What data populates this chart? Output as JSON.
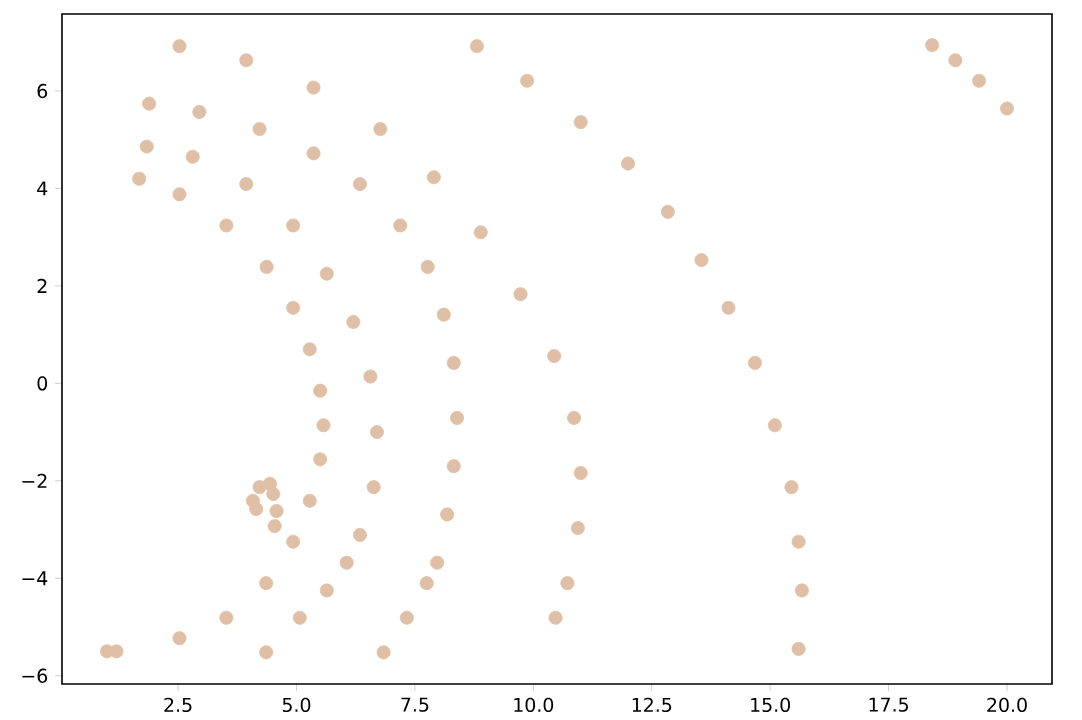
{
  "chart_data": {
    "type": "scatter",
    "color": "#dfc0a7",
    "x": [
      1.0,
      1.2,
      1.68,
      2.53,
      3.52,
      4.37,
      4.93,
      5.28,
      5.5,
      5.57,
      5.5,
      5.28,
      4.93,
      4.36,
      3.52,
      2.53,
      1.84,
      2.81,
      3.94,
      4.93,
      5.64,
      6.2,
      6.56,
      6.7,
      6.63,
      6.34,
      6.06,
      5.64,
      5.07,
      4.36,
      1.89,
      2.95,
      4.22,
      5.36,
      6.34,
      7.19,
      7.77,
      8.11,
      8.32,
      8.39,
      8.32,
      8.18,
      7.97,
      7.75,
      7.33,
      6.84,
      2.53,
      3.94,
      5.36,
      6.77,
      7.9,
      8.89,
      9.73,
      10.44,
      10.86,
      11.0,
      10.94,
      10.72,
      10.47,
      8.81,
      9.87,
      11.0,
      12.0,
      12.84,
      13.55,
      14.12,
      14.68,
      15.1,
      15.45,
      15.6,
      15.67,
      15.6,
      18.42,
      18.91,
      19.41,
      20.0,
      4.22,
      4.44,
      4.08,
      4.15,
      4.51,
      4.58,
      4.54
    ],
    "values": [
      -5.5,
      -5.5,
      4.2,
      3.88,
      3.24,
      2.39,
      1.55,
      0.7,
      -0.15,
      -0.86,
      -1.56,
      -2.41,
      -3.25,
      -4.1,
      -4.81,
      -5.23,
      4.86,
      4.65,
      4.09,
      3.24,
      2.25,
      1.26,
      0.14,
      -1.0,
      -2.13,
      -3.11,
      -3.68,
      -4.25,
      -4.81,
      -5.52,
      5.74,
      5.57,
      5.22,
      4.72,
      4.09,
      3.24,
      2.39,
      1.41,
      0.42,
      -0.71,
      -1.7,
      -2.69,
      -3.68,
      -4.1,
      -4.81,
      -5.52,
      6.92,
      6.63,
      6.07,
      5.22,
      4.23,
      3.1,
      1.83,
      0.56,
      -0.71,
      -1.84,
      -2.97,
      -4.1,
      -4.81,
      6.92,
      6.21,
      5.36,
      4.51,
      3.52,
      2.53,
      1.55,
      0.42,
      -0.86,
      -2.13,
      -3.25,
      -4.25,
      -5.45,
      6.94,
      6.63,
      6.21,
      5.64,
      -2.13,
      -2.06,
      -2.41,
      -2.58,
      -2.27,
      -2.62,
      -2.93
    ],
    "xlim": [
      0.05,
      20.95
    ],
    "ylim": [
      -6.17,
      7.58
    ],
    "xticks": [
      2.5,
      {
        "value": 5,
        "label": "5.0"
      },
      7.5,
      {
        "value": 10,
        "label": "10.0"
      },
      12.5,
      {
        "value": 15,
        "label": "15.0"
      },
      17.5,
      {
        "value": 20,
        "label": "20.0"
      }
    ],
    "yticks": [
      {
        "value": -6,
        "label": "−6"
      },
      {
        "value": -4,
        "label": "−4"
      },
      {
        "value": -2,
        "label": "−2"
      },
      0,
      2,
      4,
      6
    ]
  }
}
